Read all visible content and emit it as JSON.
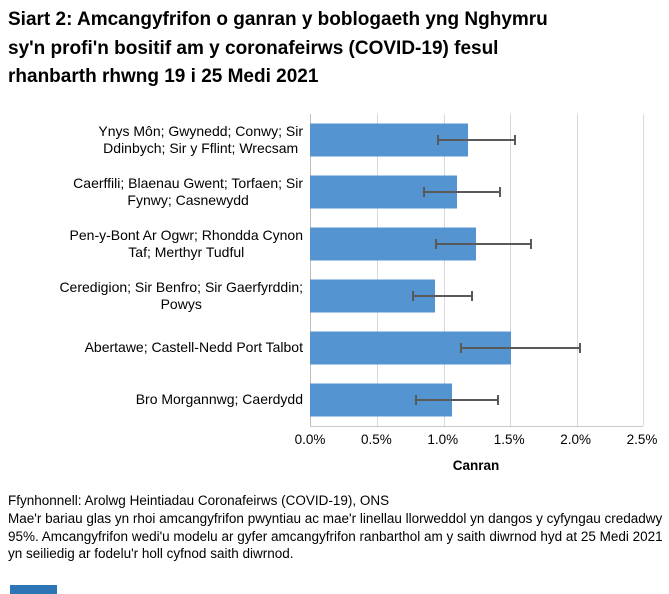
{
  "chart_data": {
    "type": "bar",
    "orientation": "horizontal",
    "title": "Siart 2: Amcangyfrifon o ganran y boblogaeth yng Nghymru sy'n profi'n bositif am y coronafeirws (COVID-19) fesul rhanbarth rhwng 19 i 25 Medi 2021",
    "categories": [
      "Ynys Môn; Gwynedd; Conwy; Sir\nDdinbych; Sir y Fflint; Wrecsam",
      "Caerffili; Blaenau Gwent; Torfaen; Sir\nFynwy; Casnewydd",
      "Pen-y-Bont Ar Ogwr; Rhondda Cynon\nTaf; Merthyr Tudful",
      "Ceredigion; Sir Benfro; Sir Gaerfyrddin;\nPowys",
      "Abertawe; Castell-Nedd Port Talbot",
      "Bro Morgannwg; Caerdydd"
    ],
    "values": [
      1.19,
      1.11,
      1.25,
      0.94,
      1.51,
      1.07
    ],
    "ci_low": [
      0.96,
      0.85,
      0.94,
      0.77,
      1.13,
      0.79
    ],
    "ci_high": [
      1.55,
      1.44,
      1.67,
      1.23,
      2.04,
      1.42
    ],
    "ci_level": "95%",
    "xlabel": "Canran",
    "x_ticks": [
      "0.0%",
      "0.5%",
      "1.0%",
      "1.5%",
      "2.0%",
      "2.5%"
    ],
    "xlim": [
      0,
      2.5
    ],
    "grid": "vertical-major",
    "legend": "none",
    "bar_color": "#5494D0",
    "error_bar_color": "#595959"
  },
  "footer": {
    "source": "Ffynhonnell: Arolwg Heintiadau Coronafeirws (COVID-19), ONS",
    "note": "Mae'r bariau glas yn rhoi amcangyfrifon pwyntiau ac mae'r linellau llorweddol yn dangos y cyfyngau credadwy 95%. Amcangyfrifon wedi'u modelu ar gyfer amcangyfrifon ranbarthol am y saith diwrnod hyd at 25 Medi 2021 yn seiliedig ar fodelu'r holl cyfnod saith diwrnod."
  },
  "decor": {
    "clipped_blue_bar_color": "#2E75B6"
  }
}
